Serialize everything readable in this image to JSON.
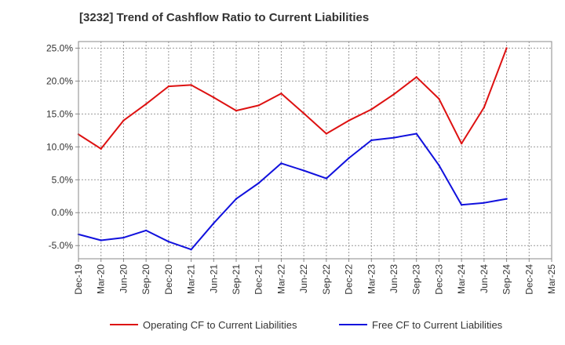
{
  "chart_data": {
    "type": "line",
    "title": "[3232]  Trend of Cashflow Ratio to Current Liabilities",
    "x": [
      "Dec-19",
      "Mar-20",
      "Jun-20",
      "Sep-20",
      "Dec-20",
      "Mar-21",
      "Jun-21",
      "Sep-21",
      "Dec-21",
      "Mar-22",
      "Jun-22",
      "Sep-22",
      "Dec-22",
      "Mar-23",
      "Jun-23",
      "Sep-23",
      "Dec-23",
      "Mar-24",
      "Jun-24",
      "Sep-24",
      "Dec-24",
      "Mar-25"
    ],
    "y_ticks": [
      "25.0%",
      "20.0%",
      "15.0%",
      "10.0%",
      "5.0%",
      "0.0%",
      "-5.0%"
    ],
    "y_tick_values": [
      25,
      20,
      15,
      10,
      5,
      0,
      -5
    ],
    "ylim": [
      -7,
      26
    ],
    "grid": true,
    "legend_position": "bottom",
    "series": [
      {
        "name": "Operating CF to Current Liabilities",
        "color": "#dd1111",
        "values": [
          11.9,
          9.7,
          14.0,
          16.5,
          19.2,
          19.4,
          17.5,
          15.5,
          16.3,
          18.1,
          15.1,
          12.0,
          14.0,
          15.7,
          18.0,
          20.6,
          17.3,
          10.5,
          16.0,
          25.0,
          null,
          null
        ]
      },
      {
        "name": "Free CF to Current Liabilities",
        "color": "#1111dd",
        "values": [
          -3.3,
          -4.2,
          -3.8,
          -2.7,
          -4.4,
          -5.6,
          -1.6,
          2.1,
          4.5,
          7.5,
          6.4,
          5.2,
          8.3,
          11.0,
          11.4,
          12.0,
          7.2,
          1.2,
          1.5,
          2.1,
          null,
          null
        ]
      }
    ]
  }
}
